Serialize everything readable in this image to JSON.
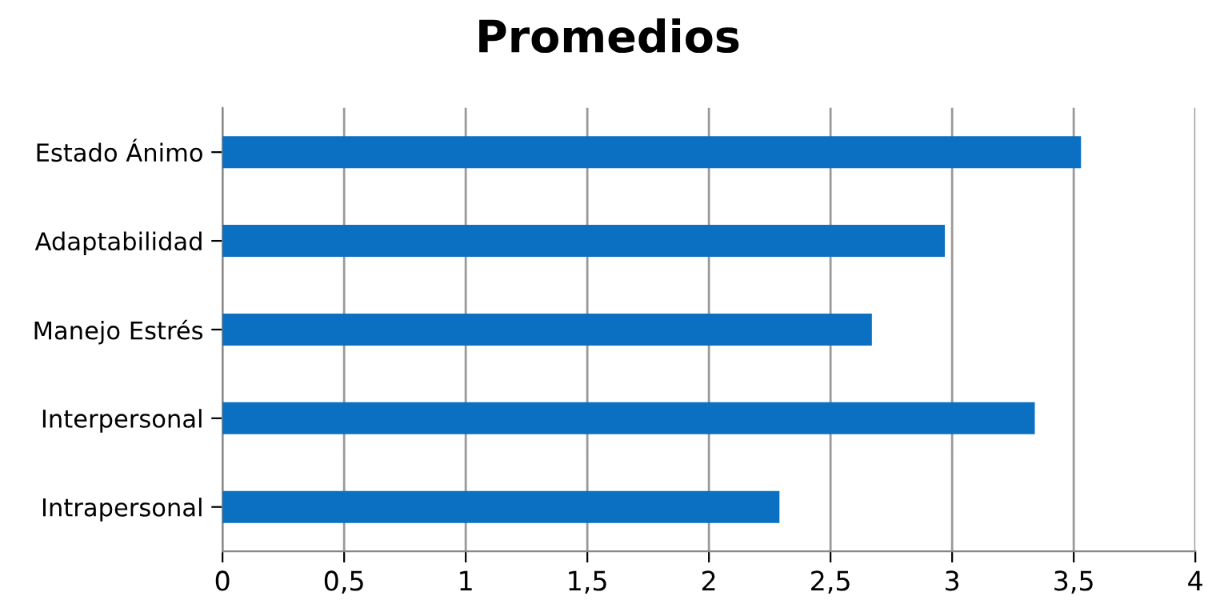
{
  "chart_data": {
    "type": "bar",
    "orientation": "horizontal",
    "title": "Promedios",
    "categories": [
      "Estado Ánimo",
      "Adaptabilidad",
      "Manejo Estrés",
      "Interpersonal",
      "Intrapersonal"
    ],
    "values": [
      3.53,
      2.97,
      2.67,
      3.34,
      2.29
    ],
    "color": "#0b6fc2",
    "xlim": [
      0,
      4
    ],
    "xticks": [
      0,
      {
        "value": 0.5,
        "label": "0,5"
      },
      1,
      {
        "value": 1.5,
        "label": "1,5"
      },
      2,
      {
        "value": 2.5,
        "label": "2,5"
      },
      3,
      {
        "value": 3.5,
        "label": "3,5"
      },
      4
    ],
    "grid": "x"
  }
}
